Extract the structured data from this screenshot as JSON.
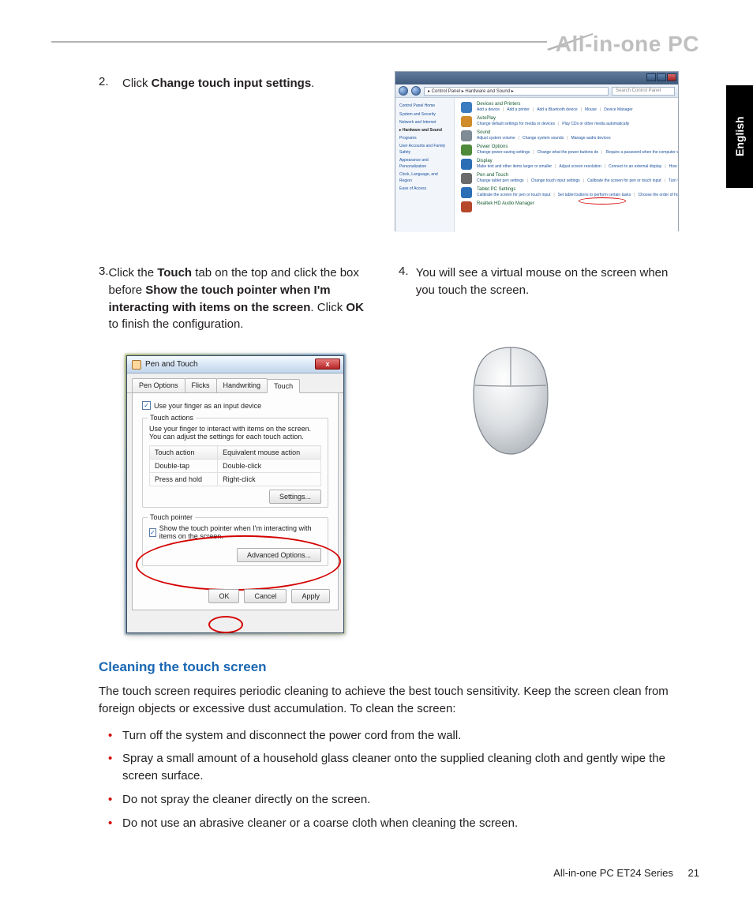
{
  "header": {
    "product": "All-in-one PC"
  },
  "langTab": "English",
  "steps": {
    "s2": {
      "num": "2.",
      "pre": "Click ",
      "bold": "Change touch input settings",
      "post": "."
    },
    "s3": {
      "num": "3.",
      "parts": [
        {
          "t": "Click the "
        },
        {
          "b": "Touch"
        },
        {
          "t": " tab on the top and click the box before "
        },
        {
          "b": "Show the touch pointer when I'm interacting with items on the screen"
        },
        {
          "t": ". Click "
        },
        {
          "b": "OK"
        },
        {
          "t": " to finish the configuration."
        }
      ]
    },
    "s4": {
      "num": "4.",
      "text": "You will see a virtual mouse on the screen when you touch the screen."
    }
  },
  "controlPanel": {
    "breadcrumb": "▸ Control Panel ▸ Hardware and Sound ▸",
    "searchPlaceholder": "Search Control Panel",
    "side": {
      "header": "Control Panel Home",
      "items": [
        "System and Security",
        "Network and Internet",
        "Hardware and Sound",
        "Programs",
        "User Accounts and Family Safety",
        "Appearance and Personalization",
        "Clock, Language, and Region",
        "Ease of Access"
      ],
      "activeIndex": 2
    },
    "categories": [
      {
        "icon": "#3b7bbf",
        "title": "Devices and Printers",
        "links": [
          "Add a device",
          "Add a printer",
          "Add a Bluetooth device",
          "Mouse",
          "Device Manager"
        ]
      },
      {
        "icon": "#d08b2a",
        "title": "AutoPlay",
        "links": [
          "Change default settings for media or devices",
          "Play CDs or other media automatically"
        ]
      },
      {
        "icon": "#7f8b95",
        "title": "Sound",
        "links": [
          "Adjust system volume",
          "Change system sounds",
          "Manage audio devices"
        ]
      },
      {
        "icon": "#4e8a3a",
        "title": "Power Options",
        "links": [
          "Change power-saving settings",
          "Change what the power buttons do",
          "Require a password when the computer wakes",
          "Change when the computer sleeps",
          "Choose a power plan"
        ]
      },
      {
        "icon": "#2a6fb5",
        "title": "Display",
        "links": [
          "Make text and other items larger or smaller",
          "Adjust screen resolution",
          "Connect to an external display",
          "How to correct monitor flicker (refresh rate)"
        ]
      },
      {
        "icon": "#6a6a6a",
        "title": "Pen and Touch",
        "links": [
          "Change tablet pen settings",
          "Change touch input settings",
          "Calibrate the screen for pen or touch input",
          "Turn flicks on and off",
          "Set flicks to perform certain tasks",
          "Change touch input settings"
        ]
      },
      {
        "icon": "#2a6fb5",
        "title": "Tablet PC Settings",
        "links": [
          "Calibrate the screen for pen or touch input",
          "Set tablet buttons to perform certain tasks",
          "Choose the order of how your screen rotates",
          "Specify which hand you write with"
        ]
      },
      {
        "icon": "#b5482a",
        "title": "Realtek HD Audio Manager",
        "links": []
      }
    ]
  },
  "penTouch": {
    "title": "Pen and Touch",
    "closeX": "x",
    "tabs": [
      "Pen Options",
      "Flicks",
      "Handwriting",
      "Touch"
    ],
    "activeTab": 3,
    "useFinger": "Use your finger as an input device",
    "group1": {
      "title": "Touch actions",
      "desc": "Use your finger to interact with items on the screen. You can adjust the settings for each touch action.",
      "cols": [
        "Touch action",
        "Equivalent mouse action"
      ],
      "rows": [
        [
          "Double-tap",
          "Double-click"
        ],
        [
          "Press and hold",
          "Right-click"
        ]
      ],
      "settingsBtn": "Settings..."
    },
    "group2": {
      "title": "Touch pointer",
      "check": "Show the touch pointer when I'm interacting with items on the screen.",
      "advBtn": "Advanced Options..."
    },
    "buttons": {
      "ok": "OK",
      "cancel": "Cancel",
      "apply": "Apply"
    }
  },
  "cleaning": {
    "heading": "Cleaning the touch screen",
    "intro": "The touch screen requires periodic cleaning to achieve the best touch sensitivity. Keep the screen clean from foreign objects or excessive dust accumulation. To clean the screen:",
    "bullets": [
      "Turn off the system and disconnect the power cord from the wall.",
      "Spray a small amount of a household glass cleaner onto the supplied cleaning cloth and gently wipe the screen surface.",
      "Do not spray the cleaner directly on the screen.",
      "Do not use an abrasive cleaner or a coarse cloth when cleaning the screen."
    ]
  },
  "footer": {
    "series": "All-in-one PC ET24 Series",
    "page": "21"
  },
  "colors": {
    "accent": "#1b68b3",
    "bullet": "#d40000"
  }
}
